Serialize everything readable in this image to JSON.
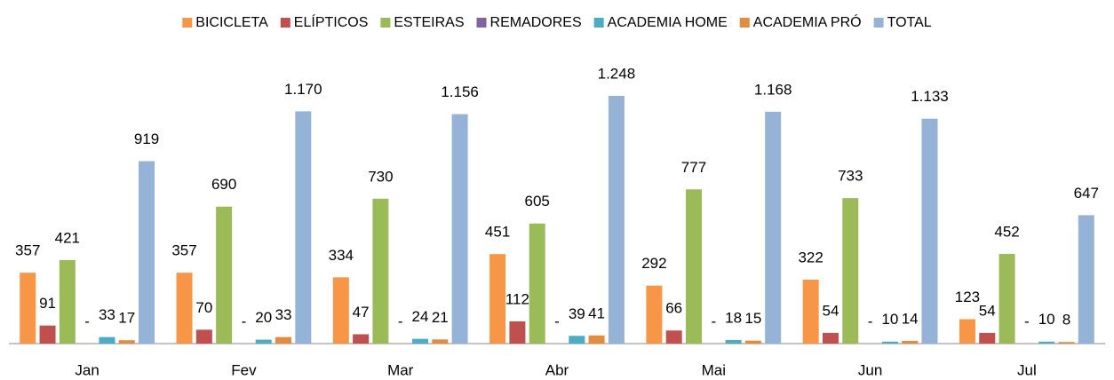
{
  "chart_data": {
    "type": "bar",
    "categories": [
      "Jan",
      "Fev",
      "Mar",
      "Abr",
      "Mai",
      "Jun",
      "Jul"
    ],
    "series": [
      {
        "name": "BICICLETA",
        "color": "#f79646",
        "values": [
          357,
          357,
          334,
          451,
          292,
          322,
          123
        ]
      },
      {
        "name": "ELÍPTICOS",
        "color": "#c0504d",
        "values": [
          91,
          70,
          47,
          112,
          66,
          54,
          54
        ]
      },
      {
        "name": "ESTEIRAS",
        "color": "#9bbb59",
        "values": [
          421,
          690,
          730,
          605,
          777,
          733,
          452
        ]
      },
      {
        "name": "REMADORES",
        "color": "#8064a2",
        "values": [
          0,
          0,
          0,
          0,
          0,
          0,
          0
        ],
        "value_labels": [
          "-",
          "-",
          "-",
          "-",
          "-",
          "-",
          "-"
        ]
      },
      {
        "name": "ACADEMIA HOME",
        "color": "#4bacc6",
        "values": [
          33,
          20,
          24,
          39,
          18,
          10,
          10
        ]
      },
      {
        "name": "ACADEMIA PRÓ",
        "color": "#e38b3f",
        "values": [
          17,
          33,
          21,
          41,
          15,
          14,
          8
        ]
      },
      {
        "name": "TOTAL",
        "color": "#95b3d7",
        "values": [
          919,
          1170,
          1156,
          1248,
          1168,
          1133,
          647
        ],
        "value_labels": [
          "919",
          "1.170",
          "1.156",
          "1.248",
          "1.168",
          "1.133",
          "647"
        ]
      }
    ],
    "ylim": [
      0,
      1400
    ],
    "legend": "top"
  }
}
